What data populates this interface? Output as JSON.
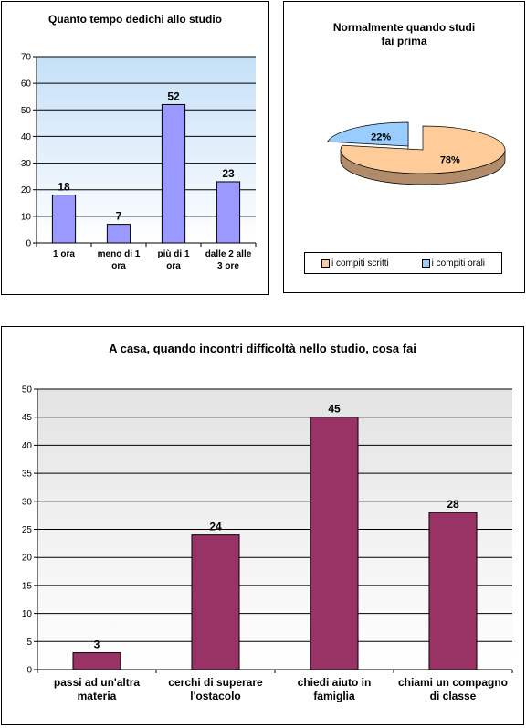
{
  "chart_data": [
    {
      "type": "bar",
      "title": "Quanto tempo dedichi allo studio",
      "categories": [
        "1 ora",
        "meno di 1 ora",
        "più di 1 ora",
        "dalle 2 alle 3 ore"
      ],
      "category_lines": [
        [
          "1 ora"
        ],
        [
          "meno di 1",
          "ora"
        ],
        [
          "più di 1",
          "ora"
        ],
        [
          "dalle 2 alle",
          "3 ore"
        ]
      ],
      "values": [
        18,
        7,
        52,
        23
      ],
      "ylim": [
        0,
        70
      ],
      "yticks": [
        0,
        10,
        20,
        30,
        40,
        50,
        60,
        70
      ],
      "bar_color": "#9999ff",
      "grid": true,
      "data_labels": true
    },
    {
      "type": "pie",
      "title": "Normalmente quando studi fai prima",
      "title_lines": [
        "Normalmente quando studi",
        "fai prima"
      ],
      "labels": [
        "i compiti scritti",
        "i compiti orali"
      ],
      "values": [
        78,
        22
      ],
      "data_labels": [
        "78%",
        "22%"
      ],
      "colors": [
        "#ffcc99",
        "#99ccff"
      ],
      "legend": "bottom"
    },
    {
      "type": "bar",
      "title": "A casa, quando incontri difficoltà nello studio, cosa fai",
      "categories": [
        "passi ad un'altra materia",
        "cerchi di superare l'ostacolo",
        "chiedi aiuto in famiglia",
        "chiami un compagno di classe"
      ],
      "category_lines": [
        [
          "passi ad un'altra",
          "materia"
        ],
        [
          "cerchi di superare",
          "l'ostacolo"
        ],
        [
          "chiedi aiuto in",
          "famiglia"
        ],
        [
          "chiami un compagno",
          "di classe"
        ]
      ],
      "values": [
        3,
        24,
        45,
        28
      ],
      "ylim": [
        0,
        50
      ],
      "yticks": [
        0,
        5,
        10,
        15,
        20,
        25,
        30,
        35,
        40,
        45,
        50
      ],
      "bar_color": "#993366",
      "grid": true,
      "data_labels": true
    }
  ]
}
